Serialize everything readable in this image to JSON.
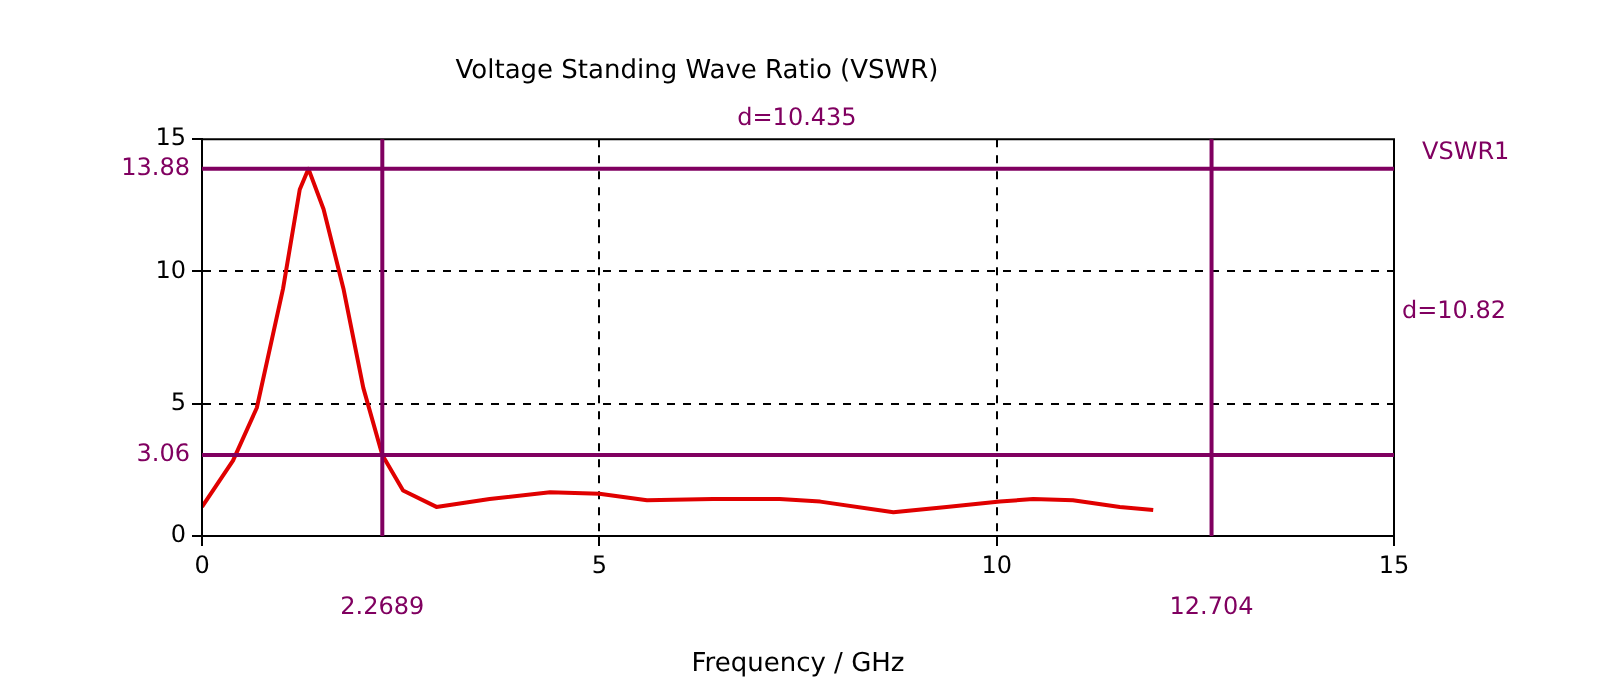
{
  "chart_data": {
    "type": "line",
    "title": "Voltage Standing Wave Ratio (VSWR)",
    "xlabel": "Frequency / GHz",
    "x": [
      0,
      0.39,
      0.69,
      1.02,
      1.23,
      1.34,
      1.53,
      1.78,
      2.03,
      2.2689,
      2.53,
      2.95,
      3.62,
      4.38,
      5.0,
      5.6,
      6.43,
      7.27,
      7.78,
      8.7,
      9.37,
      10.04,
      10.46,
      10.96,
      11.55,
      11.97
    ],
    "series": [
      {
        "color": "#e00000",
        "values": [
          1.1,
          2.85,
          4.85,
          9.35,
          13.1,
          13.88,
          12.35,
          9.35,
          5.6,
          3.06,
          1.72,
          1.1,
          1.4,
          1.65,
          1.6,
          1.35,
          1.4,
          1.4,
          1.3,
          0.9,
          1.1,
          1.3,
          1.4,
          1.35,
          1.1,
          0.98
        ]
      }
    ],
    "xlim": [
      0,
      15
    ],
    "ylim": [
      0,
      15
    ],
    "xticks": [
      0,
      5,
      10,
      15
    ],
    "yticks": [
      0,
      5,
      10,
      15
    ],
    "grid": true,
    "marker": "none",
    "line_style": "solid",
    "ref_lines": [
      {
        "axis": "y",
        "value": 13.88,
        "label": "13.88",
        "color": "#800060"
      },
      {
        "axis": "y",
        "value": 3.06,
        "label": "3.06",
        "color": "#800060"
      },
      {
        "axis": "x",
        "value": 2.2689,
        "label": "2.2689",
        "color": "#800060"
      },
      {
        "axis": "x",
        "value": 12.704,
        "label": "12.704",
        "color": "#800060"
      }
    ],
    "annotations": [
      "d=10.435",
      "d=10.82",
      "VSWR1"
    ]
  }
}
